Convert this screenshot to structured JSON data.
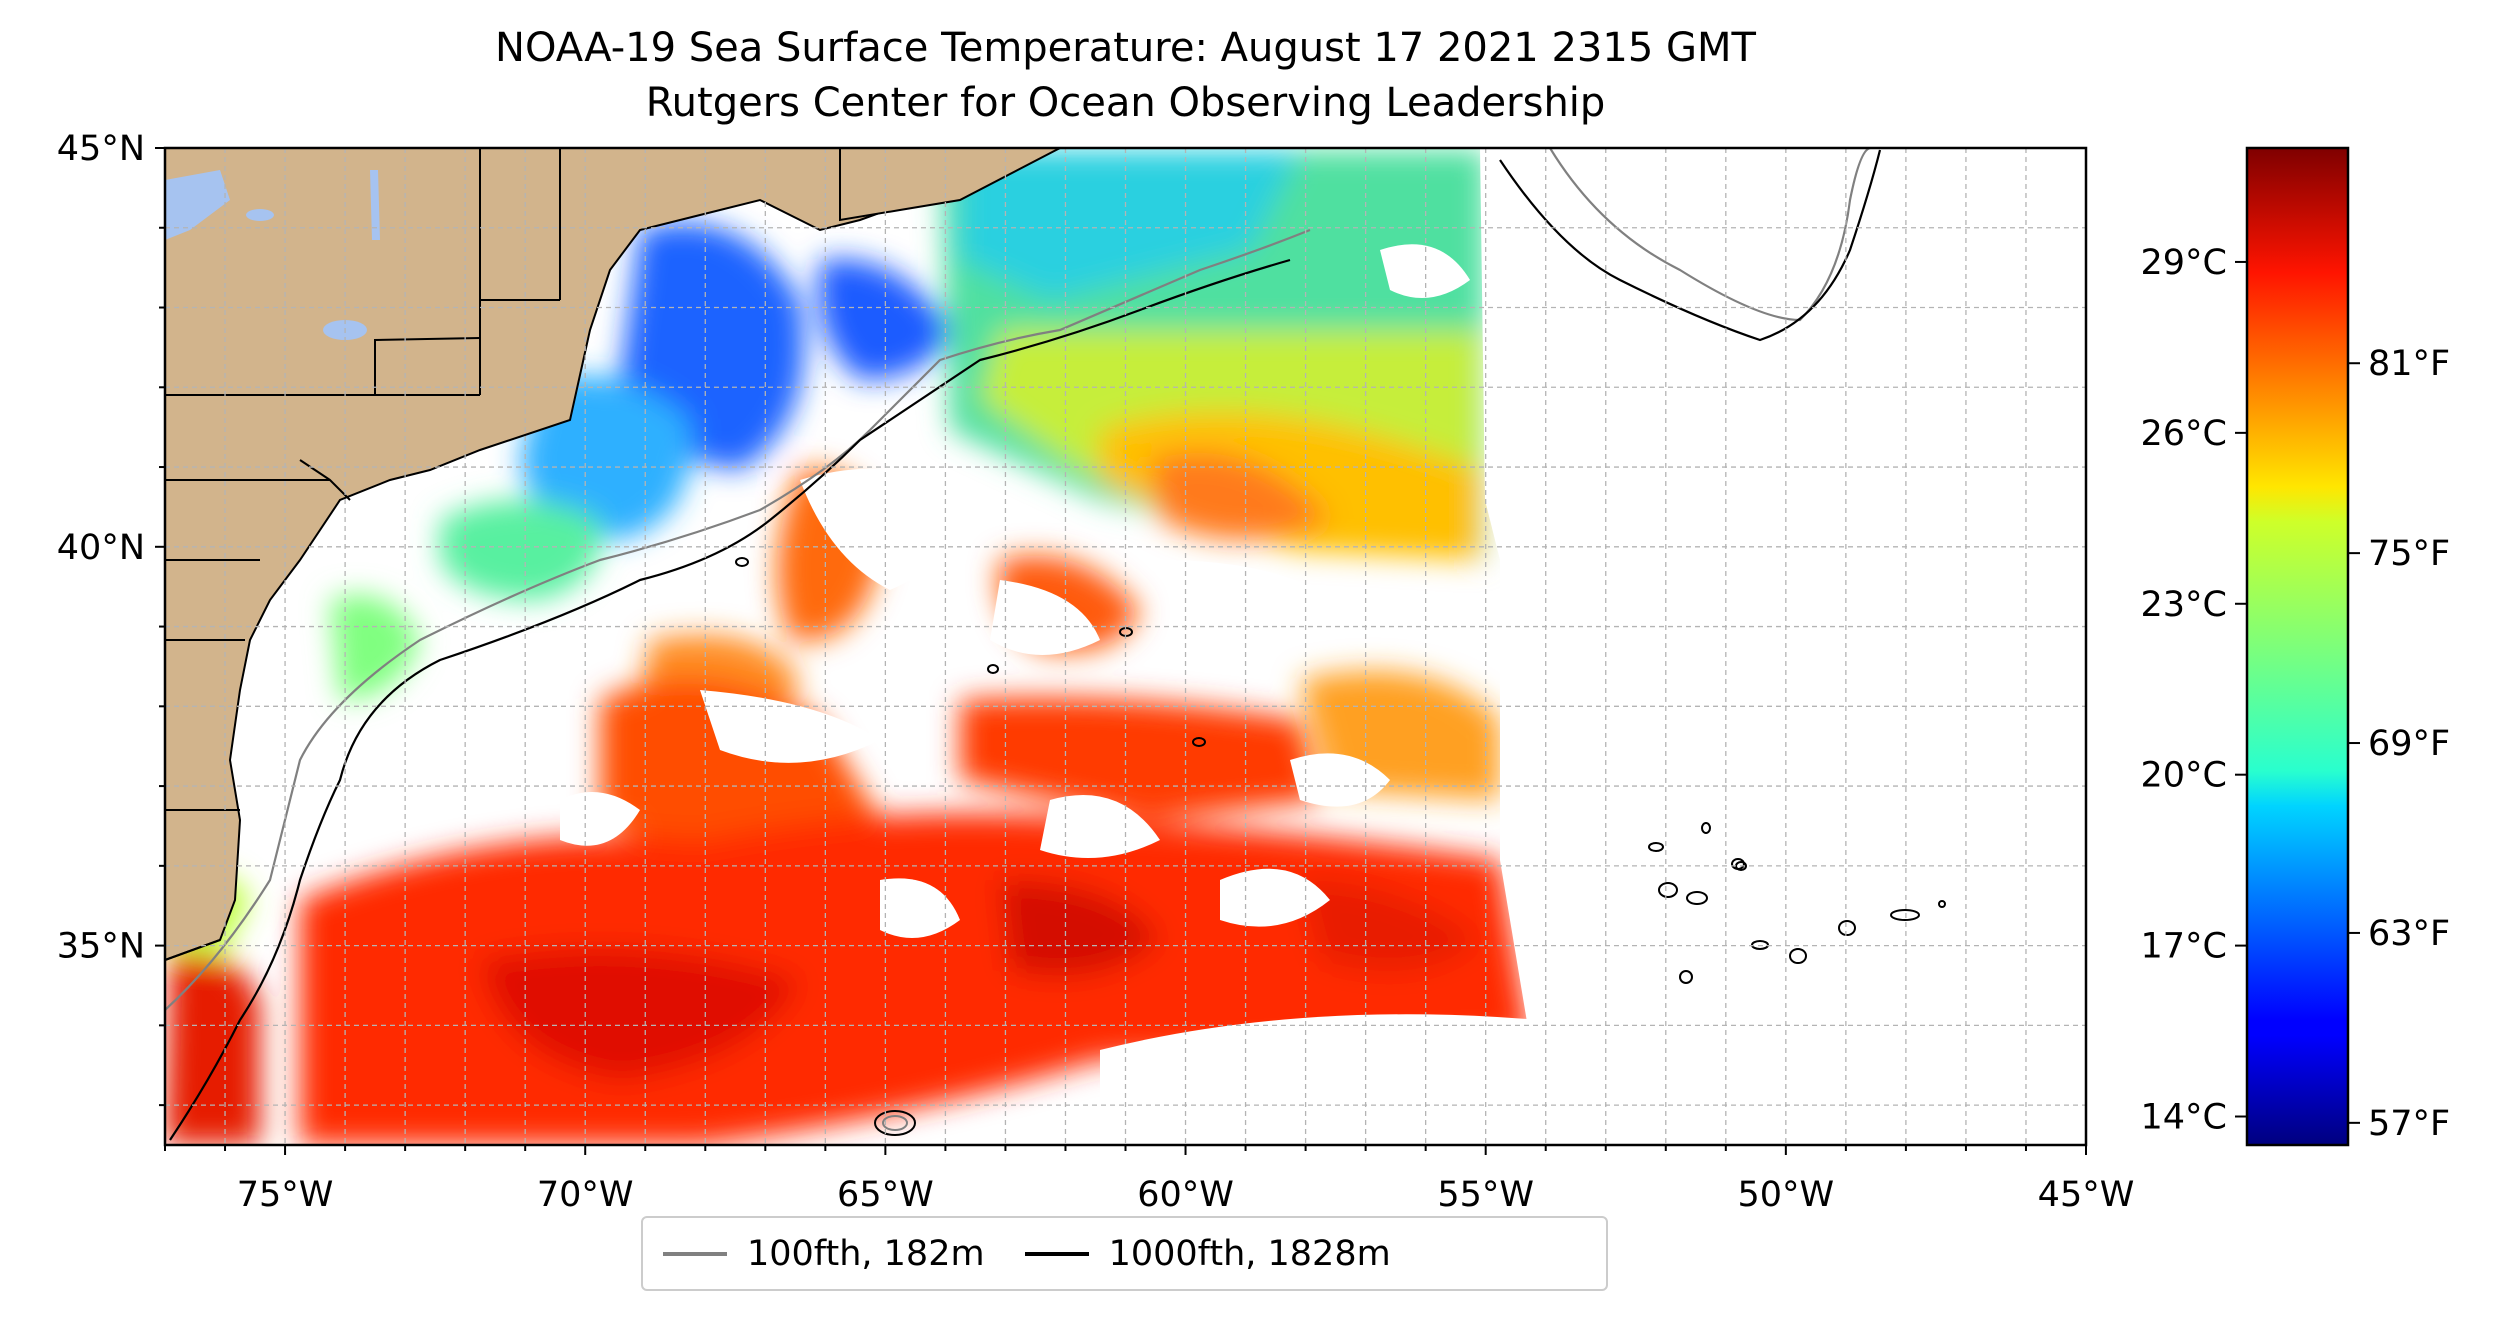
{
  "map": {
    "title_line1": "NOAA-19 Sea Surface Temperature: August 17 2021 2315 GMT",
    "title_line2": "Rutgers Center for Ocean Observing Leadership",
    "longitude_labels": [
      "75°W",
      "70°W",
      "65°W",
      "60°W",
      "55°W",
      "50°W",
      "45°W"
    ],
    "latitude_labels": [
      "45°N",
      "40°N",
      "35°N"
    ],
    "extent": {
      "lon": [
        -77,
        -45
      ],
      "lat": [
        32.5,
        45
      ]
    }
  },
  "colorbar": {
    "celsius_labels": [
      "29°C",
      "26°C",
      "23°C",
      "20°C",
      "17°C",
      "14°C"
    ],
    "fahrenheit_labels": [
      "81°F",
      "75°F",
      "69°F",
      "63°F",
      "57°F"
    ],
    "colormap": "jet",
    "range_celsius": [
      13.5,
      31.0
    ]
  },
  "legend": {
    "items": [
      {
        "label": "100fth, 182m",
        "color": "#808080"
      },
      {
        "label": "1000fth, 1828m",
        "color": "#000000"
      }
    ]
  },
  "colors": {
    "land": "#d2b48c",
    "lakes": "#a6c3f0",
    "grid": "#b0b0b0"
  }
}
